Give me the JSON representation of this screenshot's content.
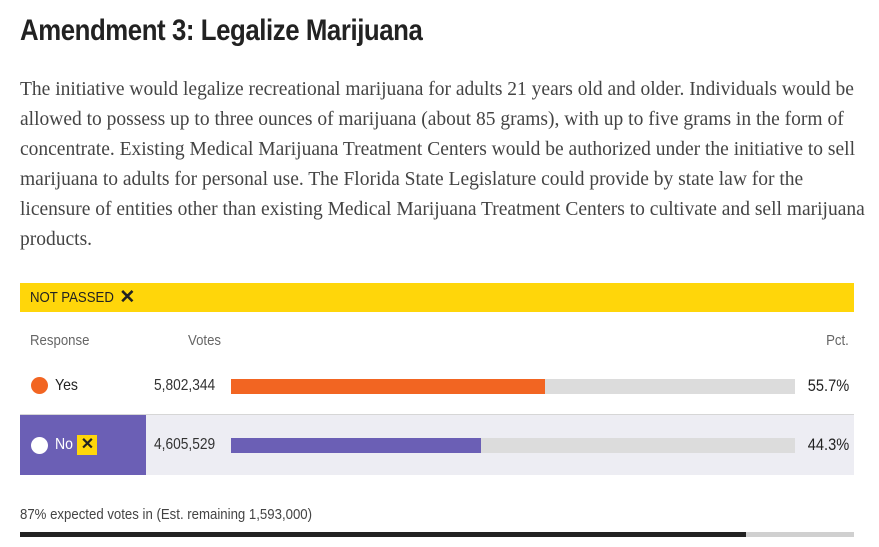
{
  "title": "Amendment 3: Legalize Marijuana",
  "description": "The initiative would legalize recreational marijuana for adults 21 years old and older. Individuals would be allowed to possess up to three ounces of marijuana (about 85 grams), with up to five grams in the form of concentrate. Existing Medical Marijuana Treatment Centers would be authorized under the initiative to sell marijuana to adults for personal use. The Florida State Legislature could provide by state law for the licensure of entities other than existing Medical Marijuana Treatment Centers to cultivate and sell marijuana products.",
  "status": {
    "label": "NOT PASSED",
    "icon": "x-mark-icon",
    "color": "#ffd60a"
  },
  "table": {
    "headers": {
      "response": "Response",
      "votes": "Votes",
      "pct": "Pct."
    },
    "rows": [
      {
        "response": "Yes",
        "votes": "5,802,344",
        "pct": "55.7%",
        "share": 0.557,
        "color": "#f26522",
        "winner": false
      },
      {
        "response": "No",
        "votes": "4,605,529",
        "pct": "44.3%",
        "share": 0.443,
        "color": "#6b5fb5",
        "winner": true,
        "winner_icon": "x-mark-icon"
      }
    ]
  },
  "footer": {
    "text": "87% expected votes in (Est. remaining 1,593,000)",
    "expected_in": 0.87
  }
}
